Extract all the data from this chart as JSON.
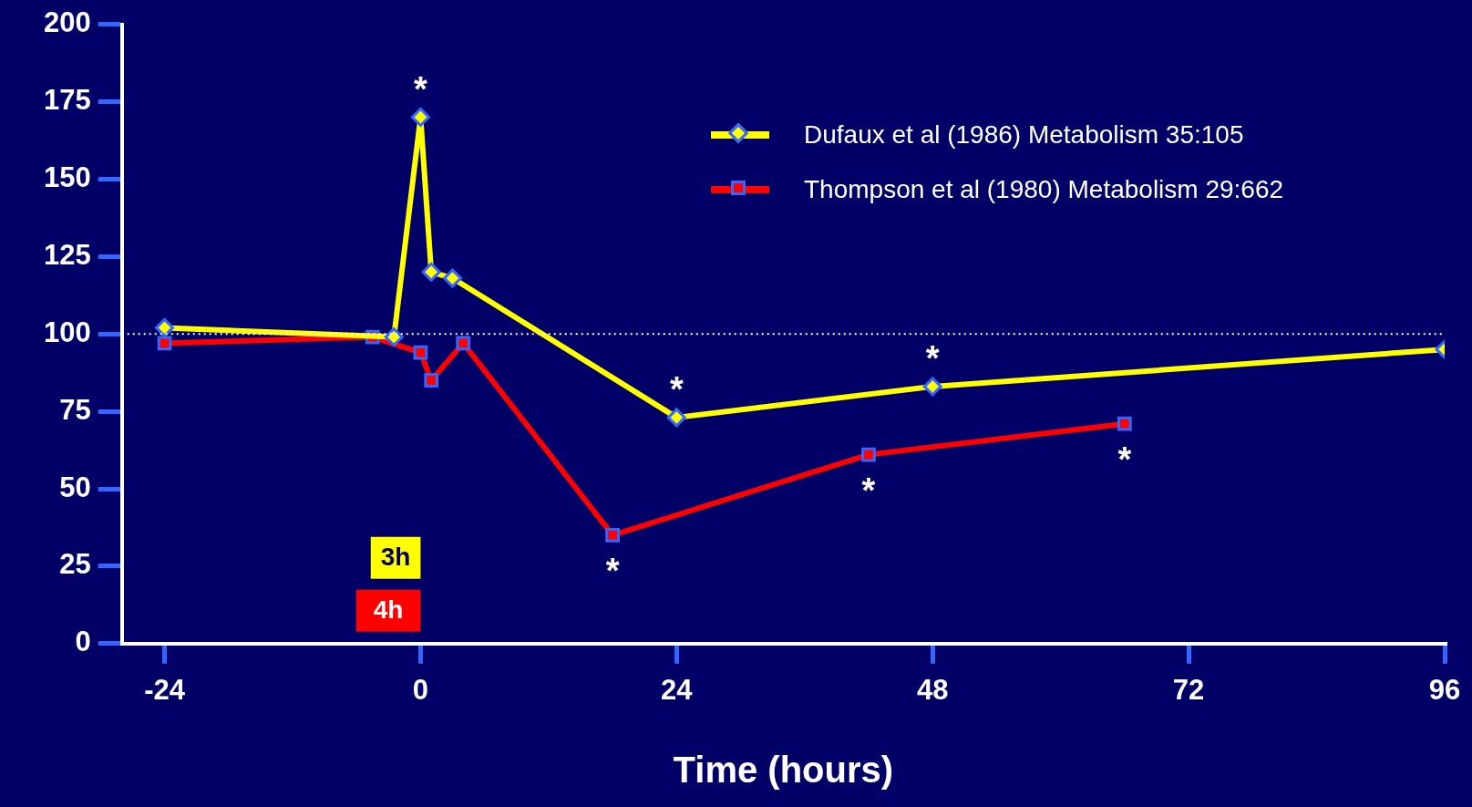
{
  "chart_data": {
    "type": "line",
    "xlabel": "Time (hours)",
    "xlim": [
      -28,
      96
    ],
    "xticks": [
      -24,
      0,
      24,
      48,
      72,
      96
    ],
    "ylim": [
      0,
      200
    ],
    "yticks": [
      0,
      25,
      50,
      75,
      100,
      125,
      150,
      175,
      200
    ],
    "legend": "top right",
    "line_style": "solid",
    "series": [
      {
        "name": "Dufaux et al (1986) Metabolism 35:105",
        "color": "#ffff00",
        "marker": "diamond",
        "x": [
          -24,
          -2.5,
          0,
          1,
          3,
          24,
          48,
          96
        ],
        "values": [
          102,
          99,
          170,
          120,
          118,
          73,
          83,
          95
        ]
      },
      {
        "name": "Thompson et al (1980) Metabolism 29:662",
        "color": "#ff0000",
        "marker": "square",
        "x": [
          -24,
          -4.5,
          0,
          1,
          4,
          18,
          42,
          66
        ],
        "values": [
          97,
          99,
          94,
          85,
          97,
          35,
          61,
          71
        ]
      }
    ],
    "ref_lines": [
      {
        "axis": "y",
        "value": 100,
        "color": "#ffffff",
        "line_style": "dotted"
      }
    ],
    "annotations": [
      {
        "text": "*",
        "x": 0,
        "y": 170
      },
      {
        "text": "*",
        "x": 24,
        "y": 73
      },
      {
        "text": "*",
        "x": 48,
        "y": 83
      },
      {
        "text": "*",
        "x": 18,
        "y": 35
      },
      {
        "text": "*",
        "x": 42,
        "y": 61
      },
      {
        "text": "*",
        "x": 66,
        "y": 71
      },
      "3h",
      "4h"
    ]
  }
}
